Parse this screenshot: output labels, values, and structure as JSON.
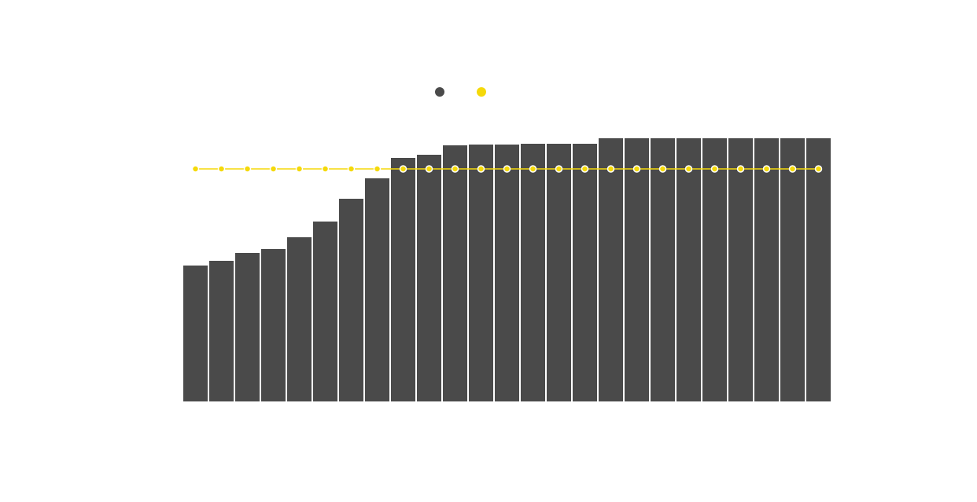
{
  "chart_data": {
    "type": "bar",
    "categories": [
      null,
      null,
      null,
      null,
      null,
      null,
      null,
      null,
      null,
      null,
      null,
      null,
      null,
      null,
      null,
      null,
      null,
      null,
      null,
      null,
      null,
      null,
      null,
      null,
      null
    ],
    "series": [
      {
        "color": "#4a4a4a",
        "values": [
          173,
          179,
          189,
          194,
          209,
          229,
          258,
          284,
          310,
          314,
          326,
          327,
          327,
          328,
          328,
          328,
          335,
          335,
          335,
          335,
          335,
          335,
          335,
          335,
          335
        ]
      },
      {
        "type": "line",
        "color": "#f5d90a",
        "values": [
          296,
          296,
          296,
          296,
          296,
          296,
          296,
          296,
          296,
          296,
          296,
          296,
          296,
          296,
          296,
          296,
          296,
          296,
          296,
          296,
          296,
          296,
          296,
          296,
          296
        ]
      }
    ],
    "ylim": [
      0,
      350
    ]
  }
}
